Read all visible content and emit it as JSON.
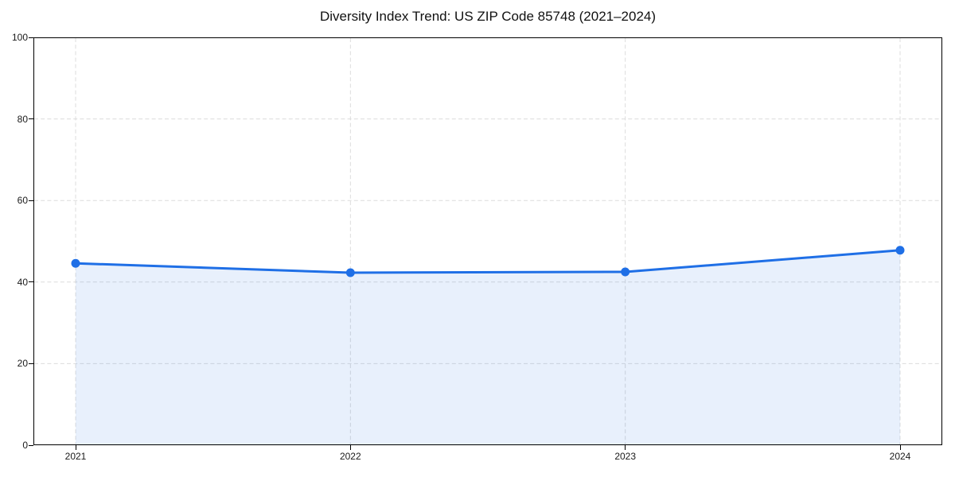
{
  "title": "Diversity Index Trend: US ZIP Code 85748 (2021–2024)",
  "chart_data": {
    "type": "area",
    "title": "Diversity Index Trend: US ZIP Code 85748 (2021–2024)",
    "x": [
      2021,
      2022,
      2023,
      2024
    ],
    "series": [
      {
        "name": "Diversity Index",
        "values": [
          44.6,
          42.3,
          42.5,
          47.8
        ]
      }
    ],
    "xlabel": "",
    "ylabel": "",
    "ylim": [
      0,
      100
    ],
    "yticks": [
      0,
      20,
      40,
      60,
      80,
      100
    ],
    "xticks": [
      2021,
      2022,
      2023,
      2024
    ],
    "grid": true,
    "legend_position": "none",
    "line_color": "#1f6fe6",
    "fill_color": "#1f6fe6",
    "fill_opacity": 0.1,
    "marker": "circle",
    "frame_color": "#000000",
    "grid_color": "#dcdcdc"
  }
}
